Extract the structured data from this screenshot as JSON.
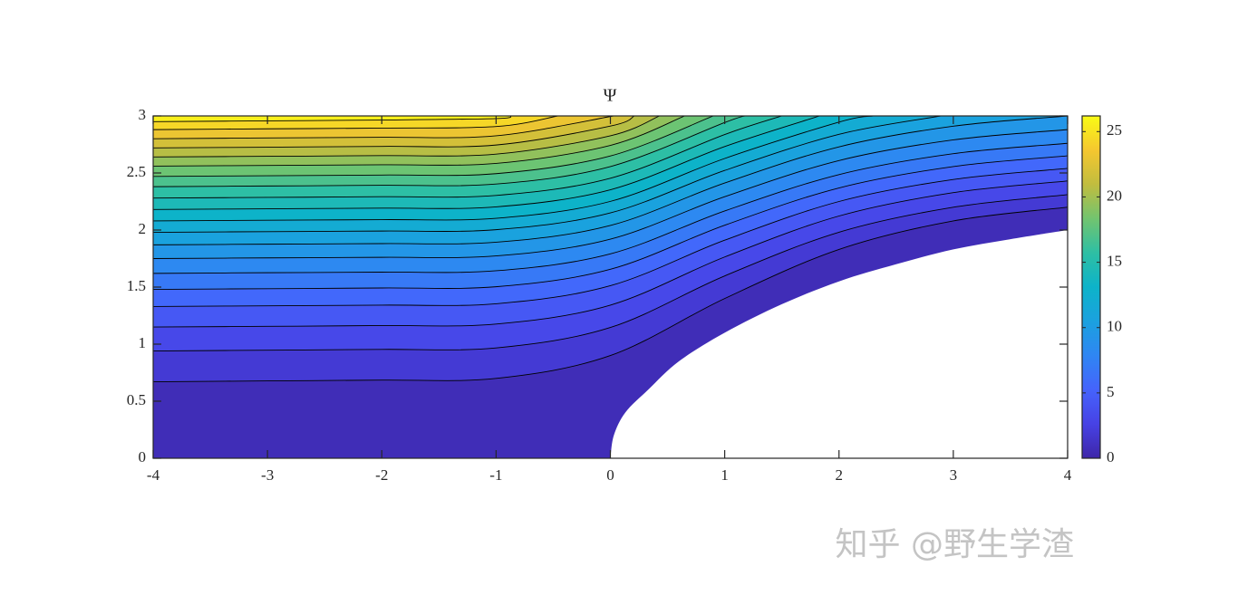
{
  "chart_data": {
    "type": "contour",
    "title": "Ψ",
    "xlim": [
      -4,
      4
    ],
    "xticks": [
      -4,
      -3,
      -2,
      -1,
      0,
      1,
      2,
      3,
      4
    ],
    "ylim": [
      0,
      3
    ],
    "yticks": [
      0,
      0.5,
      1,
      1.5,
      2,
      2.5,
      3
    ],
    "clim": [
      0,
      26.2
    ],
    "cticks": [
      0,
      5,
      10,
      15,
      20,
      25
    ],
    "colormap": [
      "#3e26a8",
      "#4742e5",
      "#4563fc",
      "#2f86f3",
      "#1ba1df",
      "#0db3c9",
      "#2ebfa4",
      "#72c46f",
      "#c1bd3f",
      "#f5c72f",
      "#f9fb15"
    ],
    "line_color": "#000000",
    "body": {
      "x": [
        0,
        0.03,
        0.13,
        0.33,
        0.6,
        1,
        1.5,
        2,
        2.5,
        3,
        3.5,
        4
      ],
      "y": [
        0,
        0.2,
        0.4,
        0.6,
        0.85,
        1.1,
        1.35,
        1.55,
        1.7,
        1.83,
        1.92,
        2.0
      ]
    },
    "contours": [
      {
        "level": 1.25,
        "x": [
          -4,
          -3,
          -2,
          -1,
          0,
          1,
          2,
          3,
          4
        ],
        "y": [
          0.67,
          0.678,
          0.685,
          0.7,
          0.9,
          1.4,
          1.83,
          2.08,
          2.2
        ]
      },
      {
        "level": 2.5,
        "x": [
          -4,
          -3,
          -2,
          -1,
          0,
          1,
          2,
          3,
          4
        ],
        "y": [
          0.94,
          0.947,
          0.954,
          0.967,
          1.146,
          1.598,
          1.981,
          2.2,
          2.31
        ]
      },
      {
        "level": 3.75,
        "x": [
          -4,
          -3,
          -2,
          -1,
          0,
          1,
          2,
          3,
          4
        ],
        "y": [
          1.15,
          1.156,
          1.163,
          1.176,
          1.342,
          1.764,
          2.123,
          2.328,
          2.43
        ]
      },
      {
        "level": 5,
        "x": [
          -4,
          -3,
          -2,
          -1,
          0,
          1,
          2,
          3,
          4
        ],
        "y": [
          1.33,
          1.336,
          1.342,
          1.354,
          1.512,
          1.911,
          2.25,
          2.443,
          2.54
        ]
      },
      {
        "level": 6.25,
        "x": [
          -4,
          -3,
          -2,
          -1,
          0,
          1,
          2,
          3,
          4
        ],
        "y": [
          1.48,
          1.486,
          1.492,
          1.503,
          1.656,
          2.042,
          2.369,
          2.556,
          2.65
        ]
      },
      {
        "level": 7.5,
        "x": [
          -4,
          -3,
          -2,
          -1,
          0,
          1,
          2,
          3,
          4
        ],
        "y": [
          1.62,
          1.626,
          1.631,
          1.643,
          1.791,
          2.167,
          2.486,
          2.669,
          2.76
        ]
      },
      {
        "level": 8.75,
        "x": [
          -4,
          -3,
          -2,
          -1,
          0,
          1,
          2,
          3,
          4
        ],
        "y": [
          1.75,
          1.756,
          1.761,
          1.773,
          1.92,
          2.292,
          2.609,
          2.79,
          2.88
        ]
      },
      {
        "level": 10,
        "x": [
          -4,
          -3,
          -2,
          -1,
          0,
          1,
          2,
          3,
          4
        ],
        "y": [
          1.87,
          1.876,
          1.881,
          1.893,
          2.04,
          2.412,
          2.729,
          2.91,
          3
        ]
      },
      {
        "level": 11.25,
        "x": [
          -4,
          -3,
          -2,
          -1,
          0,
          1,
          2,
          2.89
        ],
        "y": [
          1.98,
          1.986,
          1.991,
          2.003,
          2.15,
          2.522,
          2.839,
          3
        ]
      },
      {
        "level": 12.5,
        "x": [
          -4,
          -3,
          -2,
          -1,
          0,
          1,
          2,
          2.3
        ],
        "y": [
          2.08,
          2.086,
          2.091,
          2.103,
          2.251,
          2.627,
          2.946,
          3
        ]
      },
      {
        "level": 13.75,
        "x": [
          -4,
          -3,
          -2,
          -1,
          0,
          1,
          1.83
        ],
        "y": [
          2.18,
          2.186,
          2.192,
          2.203,
          2.353,
          2.732,
          3
        ]
      },
      {
        "level": 15,
        "x": [
          -4,
          -3,
          -2,
          -1,
          0,
          1,
          1.5
        ],
        "y": [
          2.28,
          2.286,
          2.292,
          2.303,
          2.454,
          2.837,
          3
        ]
      },
      {
        "level": 16.25,
        "x": [
          -4,
          -3,
          -2,
          -1,
          0,
          1,
          1.18
        ],
        "y": [
          2.38,
          2.386,
          2.392,
          2.403,
          2.556,
          2.942,
          3
        ]
      },
      {
        "level": 17.5,
        "x": [
          -4,
          -3,
          -2,
          -1,
          0,
          0.9
        ],
        "y": [
          2.47,
          2.476,
          2.482,
          2.494,
          2.649,
          3
        ]
      },
      {
        "level": 18.75,
        "x": [
          -4,
          -3,
          -2,
          -1,
          0,
          0.65
        ],
        "y": [
          2.56,
          2.566,
          2.572,
          2.584,
          2.742,
          3
        ]
      },
      {
        "level": 20,
        "x": [
          -4,
          -3,
          -2,
          -1,
          0,
          0.43
        ],
        "y": [
          2.64,
          2.646,
          2.652,
          2.665,
          2.826,
          3
        ]
      },
      {
        "level": 21.25,
        "x": [
          -4,
          -3,
          -2,
          -1,
          0,
          0.21
        ],
        "y": [
          2.72,
          2.726,
          2.733,
          2.745,
          2.911,
          3
        ]
      },
      {
        "level": 22.5,
        "x": [
          -4,
          -3,
          -2,
          -1,
          0,
          0.01
        ],
        "y": [
          2.8,
          2.807,
          2.813,
          2.826,
          2.995,
          3
        ]
      },
      {
        "level": 23.75,
        "x": [
          -4,
          -3,
          -2,
          -1,
          -0.46
        ],
        "y": [
          2.88,
          2.887,
          2.893,
          2.907,
          3
        ]
      },
      {
        "level": 25,
        "x": [
          -4,
          -3,
          -2,
          -1,
          -0.87
        ],
        "y": [
          2.95,
          2.957,
          2.964,
          2.977,
          3
        ]
      }
    ]
  },
  "watermark": "知乎 @野生学渣"
}
